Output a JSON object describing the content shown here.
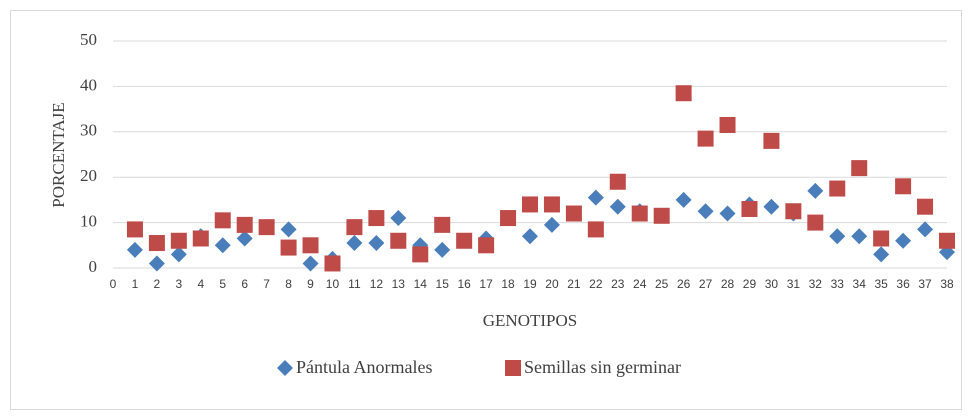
{
  "chart_data": {
    "type": "scatter",
    "xlabel": "GENOTIPOS",
    "ylabel": "PORCENTAJE",
    "xlim": [
      0,
      38
    ],
    "xticks": [
      0,
      1,
      2,
      3,
      4,
      5,
      6,
      7,
      8,
      9,
      10,
      11,
      12,
      13,
      14,
      15,
      16,
      17,
      18,
      19,
      20,
      21,
      22,
      23,
      24,
      25,
      26,
      27,
      28,
      29,
      30,
      31,
      32,
      33,
      34,
      35,
      36,
      37,
      38
    ],
    "ylim": [
      0,
      50
    ],
    "yticks": [
      0,
      10,
      20,
      30,
      40,
      50
    ],
    "grid": true,
    "legend": "bottom",
    "series": [
      {
        "name": "Pántula Anormales",
        "color": "#4a7ebb",
        "marker": "diamond",
        "x": [
          1,
          2,
          3,
          4,
          5,
          6,
          7,
          8,
          9,
          10,
          11,
          12,
          13,
          14,
          15,
          16,
          17,
          18,
          19,
          20,
          21,
          22,
          23,
          24,
          25,
          26,
          27,
          28,
          29,
          30,
          31,
          32,
          33,
          34,
          35,
          36,
          37,
          38
        ],
        "values": [
          4,
          1,
          3,
          7,
          5,
          6.5,
          9,
          8.5,
          1,
          2,
          5.5,
          5.5,
          11,
          5,
          4,
          6,
          6.5,
          11,
          7,
          9.5,
          12,
          15.5,
          13.5,
          12.5,
          11.5,
          15,
          12.5,
          12,
          14,
          13.5,
          12,
          17,
          7,
          7,
          3,
          6,
          8.5,
          3.5
        ]
      },
      {
        "name": "Semillas sin germinar",
        "color": "#be4b48",
        "marker": "square",
        "x": [
          1,
          2,
          3,
          4,
          5,
          6,
          7,
          8,
          9,
          10,
          11,
          12,
          13,
          14,
          15,
          16,
          17,
          18,
          19,
          20,
          21,
          22,
          23,
          24,
          25,
          26,
          27,
          28,
          29,
          30,
          31,
          32,
          33,
          34,
          35,
          36,
          37,
          38
        ],
        "values": [
          8.5,
          5.5,
          6,
          6.5,
          10.5,
          9.5,
          9,
          4.5,
          5,
          1,
          9,
          11,
          6,
          3,
          9.5,
          6,
          5,
          11,
          14,
          14,
          12,
          8.5,
          19,
          12,
          11.5,
          38.5,
          28.5,
          31.5,
          13,
          28,
          12.5,
          10,
          17.5,
          22,
          6.5,
          18,
          13.5,
          6
        ]
      }
    ]
  }
}
